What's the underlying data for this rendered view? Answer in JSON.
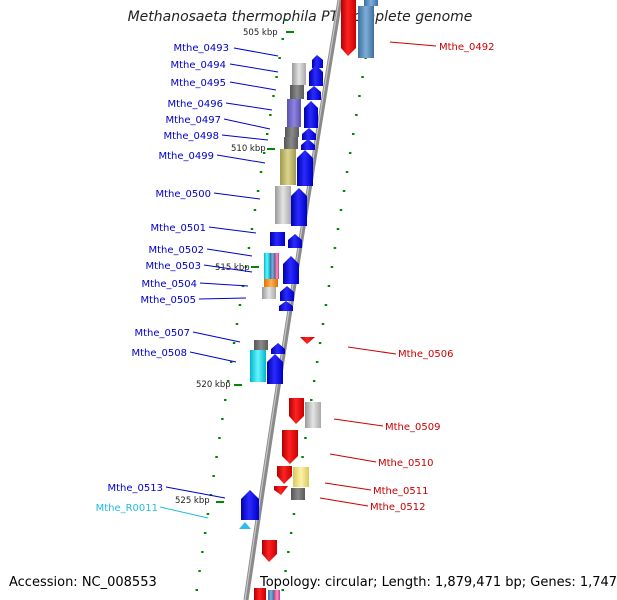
{
  "title": "Methanosaeta thermophila PT, complete genome",
  "accession": "Accession: NC_008553",
  "summary": "Topology: circular; Length: 1,879,471 bp; Genes: 1,747",
  "colors": {
    "backbone": "#808080",
    "forward_label": "#0000cc",
    "reverse_label": "#cc0000",
    "rna_label": "#22bbdd",
    "tick": "#008800"
  },
  "scale_labels": [
    "505 kbp",
    "510 kbp",
    "515 kbp",
    "520 kbp",
    "525 kbp"
  ],
  "left_labels": [
    {
      "text": "Mthe_0493",
      "color": "#0000cc"
    },
    {
      "text": "Mthe_0494",
      "color": "#0000cc"
    },
    {
      "text": "Mthe_0495",
      "color": "#0000cc"
    },
    {
      "text": "Mthe_0496",
      "color": "#0000cc"
    },
    {
      "text": "Mthe_0497",
      "color": "#0000cc"
    },
    {
      "text": "Mthe_0498",
      "color": "#0000cc"
    },
    {
      "text": "Mthe_0499",
      "color": "#0000cc"
    },
    {
      "text": "Mthe_0500",
      "color": "#0000cc"
    },
    {
      "text": "Mthe_0501",
      "color": "#0000cc"
    },
    {
      "text": "Mthe_0502",
      "color": "#0000cc"
    },
    {
      "text": "Mthe_0503",
      "color": "#0000cc"
    },
    {
      "text": "Mthe_0504",
      "color": "#0000cc"
    },
    {
      "text": "Mthe_0505",
      "color": "#0000cc"
    },
    {
      "text": "Mthe_0507",
      "color": "#0000cc"
    },
    {
      "text": "Mthe_0508",
      "color": "#0000cc"
    },
    {
      "text": "Mthe_0513",
      "color": "#0000cc"
    },
    {
      "text": "Mthe_R0011",
      "color": "#22bbdd"
    }
  ],
  "right_labels": [
    {
      "text": "Mthe_0492",
      "color": "#cc0000"
    },
    {
      "text": "Mthe_0506",
      "color": "#cc0000"
    },
    {
      "text": "Mthe_0509",
      "color": "#cc0000"
    },
    {
      "text": "Mthe_0510",
      "color": "#cc0000"
    },
    {
      "text": "Mthe_0511",
      "color": "#cc0000"
    },
    {
      "text": "Mthe_0512",
      "color": "#cc0000"
    }
  ]
}
